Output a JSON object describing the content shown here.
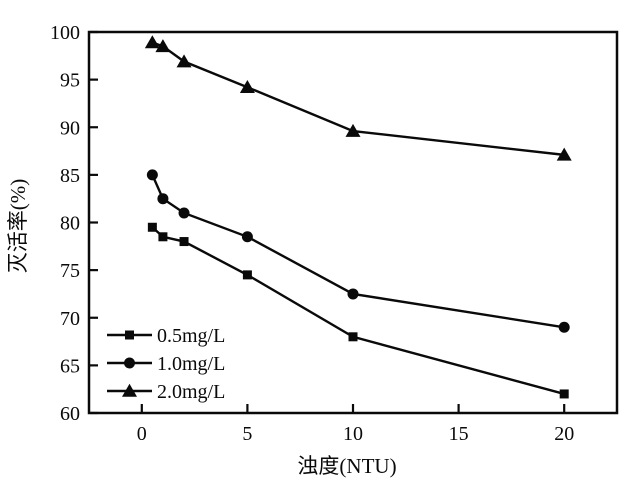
{
  "chart_data": {
    "type": "line",
    "title": "",
    "xlabel": "浊度(NTU)",
    "ylabel": "灭活率(%)",
    "x": [
      0.5,
      1,
      2,
      5,
      10,
      20
    ],
    "series": [
      {
        "name": "0.5mg/L",
        "marker": "square",
        "values": [
          79.5,
          78.5,
          78.0,
          74.5,
          68.0,
          62.0
        ]
      },
      {
        "name": "1.0mg/L",
        "marker": "circle",
        "values": [
          85.0,
          82.5,
          81.0,
          78.5,
          72.5,
          69.0
        ]
      },
      {
        "name": "2.0mg/L",
        "marker": "triangle",
        "values": [
          98.9,
          98.5,
          96.9,
          94.2,
          89.6,
          87.1
        ]
      }
    ],
    "xlim": [
      -2.5,
      22.5
    ],
    "ylim": [
      60,
      100
    ],
    "xticks": [
      0,
      5,
      10,
      15,
      20
    ],
    "yticks": [
      60,
      65,
      70,
      75,
      80,
      85,
      90,
      95,
      100
    ],
    "grid": false,
    "legend_position": "lower-left",
    "line_color": "#0a0a0a",
    "background": "#ffffff"
  }
}
